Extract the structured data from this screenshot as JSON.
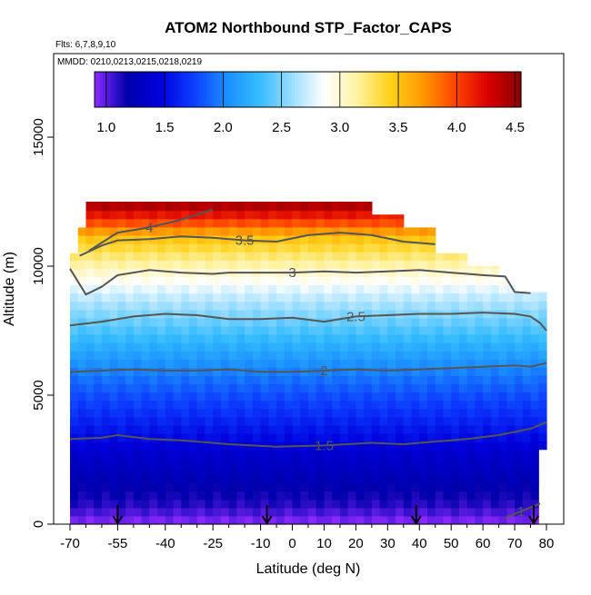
{
  "chart_data": {
    "type": "heatmap",
    "title": "ATOM2 Northbound STP_Factor_CAPS",
    "annotations": [
      "Flts: 6,7,8,9,10",
      "MMDD: 0210,0213,0215,0218,0219"
    ],
    "xlabel": "Latitude (deg N)",
    "ylabel": "Altitude (m)",
    "xlim": [
      -70,
      80
    ],
    "ylim": [
      0,
      17500
    ],
    "x_ticks": [
      -70,
      -55,
      -40,
      -25,
      -10,
      0,
      10,
      20,
      30,
      40,
      50,
      60,
      70,
      80
    ],
    "x_tick_labels": [
      "-70",
      "-55",
      "-40",
      "-25",
      "-10",
      "0",
      "10",
      "20",
      "30",
      "40",
      "50",
      "60",
      "70",
      "80"
    ],
    "x_minor_ticks": [
      -65,
      -60,
      -50,
      -45,
      -35,
      -30,
      -20,
      -15,
      -5,
      5,
      15,
      25,
      35,
      45,
      55,
      65,
      75
    ],
    "y_ticks": [
      0,
      5000,
      10000,
      15000
    ],
    "y_tick_labels": [
      "0",
      "5000",
      "10000",
      "15000"
    ],
    "colorbar": {
      "range": [
        0.9,
        4.55
      ],
      "ticks": [
        1.0,
        1.5,
        2.0,
        2.5,
        3.0,
        3.5,
        4.0,
        4.5
      ],
      "tick_labels": [
        "1.0",
        "1.5",
        "2.0",
        "2.5",
        "3.0",
        "3.5",
        "4.0",
        "4.5"
      ],
      "colors": [
        "#8c2bff",
        "#0000aa",
        "#0000dd",
        "#0d3dff",
        "#1a8cff",
        "#33bbff",
        "#99ddff",
        "#ffffff",
        "#fff2a0",
        "#ffd11a",
        "#ff9900",
        "#ff4400",
        "#d90000",
        "#8b0000"
      ]
    },
    "contours": [
      {
        "level": 1.5,
        "label": "1.5",
        "points": [
          [
            -70,
            3300
          ],
          [
            -60,
            3350
          ],
          [
            -55,
            3450
          ],
          [
            -45,
            3300
          ],
          [
            -35,
            3250
          ],
          [
            -20,
            3100
          ],
          [
            -5,
            3000
          ],
          [
            10,
            3050
          ],
          [
            25,
            3150
          ],
          [
            35,
            3100
          ],
          [
            45,
            3200
          ],
          [
            55,
            3300
          ],
          [
            65,
            3450
          ],
          [
            75,
            3700
          ],
          [
            80,
            3950
          ]
        ]
      },
      {
        "level": 2.0,
        "label": "2",
        "points": [
          [
            -70,
            5900
          ],
          [
            -60,
            5950
          ],
          [
            -50,
            6000
          ],
          [
            -40,
            5950
          ],
          [
            -30,
            5950
          ],
          [
            -20,
            6000
          ],
          [
            -10,
            5900
          ],
          [
            0,
            5900
          ],
          [
            10,
            5950
          ],
          [
            20,
            6000
          ],
          [
            30,
            5950
          ],
          [
            40,
            6000
          ],
          [
            50,
            6050
          ],
          [
            60,
            6100
          ],
          [
            70,
            6150
          ],
          [
            75,
            6100
          ],
          [
            80,
            6250
          ]
        ]
      },
      {
        "level": 2.5,
        "label": "2.5",
        "points": [
          [
            -70,
            7700
          ],
          [
            -60,
            7850
          ],
          [
            -50,
            8050
          ],
          [
            -40,
            8150
          ],
          [
            -30,
            8100
          ],
          [
            -20,
            7950
          ],
          [
            -10,
            7950
          ],
          [
            0,
            8000
          ],
          [
            10,
            7850
          ],
          [
            20,
            8050
          ],
          [
            30,
            8100
          ],
          [
            40,
            8150
          ],
          [
            50,
            8150
          ],
          [
            60,
            8200
          ],
          [
            70,
            8150
          ],
          [
            75,
            8050
          ],
          [
            78,
            7800
          ],
          [
            80,
            7500
          ]
        ]
      },
      {
        "level": 3.0,
        "label": "3",
        "points": [
          [
            -70,
            9900
          ],
          [
            -65,
            8900
          ],
          [
            -60,
            9200
          ],
          [
            -55,
            9650
          ],
          [
            -45,
            9850
          ],
          [
            -35,
            9750
          ],
          [
            -25,
            9700
          ],
          [
            -20,
            9750
          ],
          [
            -10,
            9750
          ],
          [
            0,
            9750
          ],
          [
            10,
            9800
          ],
          [
            20,
            9750
          ],
          [
            30,
            9800
          ],
          [
            40,
            9850
          ],
          [
            50,
            9750
          ],
          [
            60,
            9650
          ],
          [
            67,
            9600
          ],
          [
            70,
            9000
          ],
          [
            75,
            8950
          ]
        ]
      },
      {
        "level": 3.5,
        "label": "3.5",
        "points": [
          [
            -67,
            10400
          ],
          [
            -60,
            10800
          ],
          [
            -55,
            11000
          ],
          [
            -45,
            11050
          ],
          [
            -35,
            11150
          ],
          [
            -25,
            11100
          ],
          [
            -15,
            11000
          ],
          [
            -5,
            10950
          ],
          [
            5,
            11200
          ],
          [
            15,
            11300
          ],
          [
            25,
            11200
          ],
          [
            35,
            10950
          ],
          [
            45,
            10850
          ]
        ]
      },
      {
        "level": 4.0,
        "label": "4",
        "points": [
          [
            -64,
            10600
          ],
          [
            -55,
            11300
          ],
          [
            -45,
            11500
          ],
          [
            -35,
            11800
          ],
          [
            -25,
            12200
          ]
        ]
      },
      {
        "level": 1.0,
        "label": "1",
        "points": [
          [
            67,
            250
          ],
          [
            72,
            500
          ],
          [
            78,
            800
          ]
        ]
      }
    ],
    "arrow_latitudes": [
      -55,
      -8,
      39,
      76
    ]
  }
}
